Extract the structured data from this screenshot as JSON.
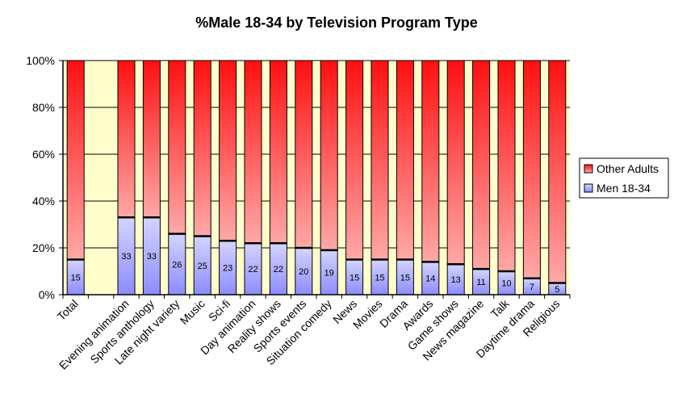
{
  "chart_data": {
    "type": "bar",
    "stacked": "percent",
    "title": "%Male 18-34 by Television Program Type",
    "xlabel": "",
    "ylabel": "",
    "ylim": [
      0,
      100
    ],
    "yticks": [
      "0%",
      "20%",
      "40%",
      "60%",
      "80%",
      "100%"
    ],
    "ytick_values": [
      0,
      20,
      40,
      60,
      80,
      100
    ],
    "grid": true,
    "categories": [
      "Total",
      "",
      "Evening animation",
      "Sports anthology",
      "Late night variety",
      "Music",
      "Sci-fi",
      "Day animation",
      "Reality shows",
      "Sports events",
      "Situation comedy",
      "News",
      "Movies",
      "Drama",
      "Awards",
      "Game shows",
      "News magazine",
      "Talk",
      "Daytime drama",
      "Religious"
    ],
    "series": [
      {
        "name": "Men 18-34",
        "color": "#9999ff",
        "values": [
          15,
          null,
          33,
          33,
          26,
          25,
          23,
          22,
          22,
          20,
          19,
          15,
          15,
          15,
          14,
          13,
          11,
          10,
          7,
          5
        ],
        "data_labels": [
          "15",
          "",
          "33",
          "33",
          "26",
          "25",
          "23",
          "22",
          "22",
          "20",
          "19",
          "15",
          "15",
          "15",
          "14",
          "13",
          "11",
          "10",
          "7",
          "5"
        ]
      },
      {
        "name": "Other Adults",
        "color": "#ff0000",
        "values": [
          85,
          null,
          67,
          67,
          74,
          75,
          77,
          78,
          78,
          80,
          81,
          85,
          85,
          85,
          86,
          87,
          89,
          90,
          93,
          95
        ]
      }
    ],
    "legend": {
      "position": "right",
      "entries": [
        "Other Adults",
        "Men 18-34"
      ]
    },
    "plot_background": "#ffffcc"
  }
}
